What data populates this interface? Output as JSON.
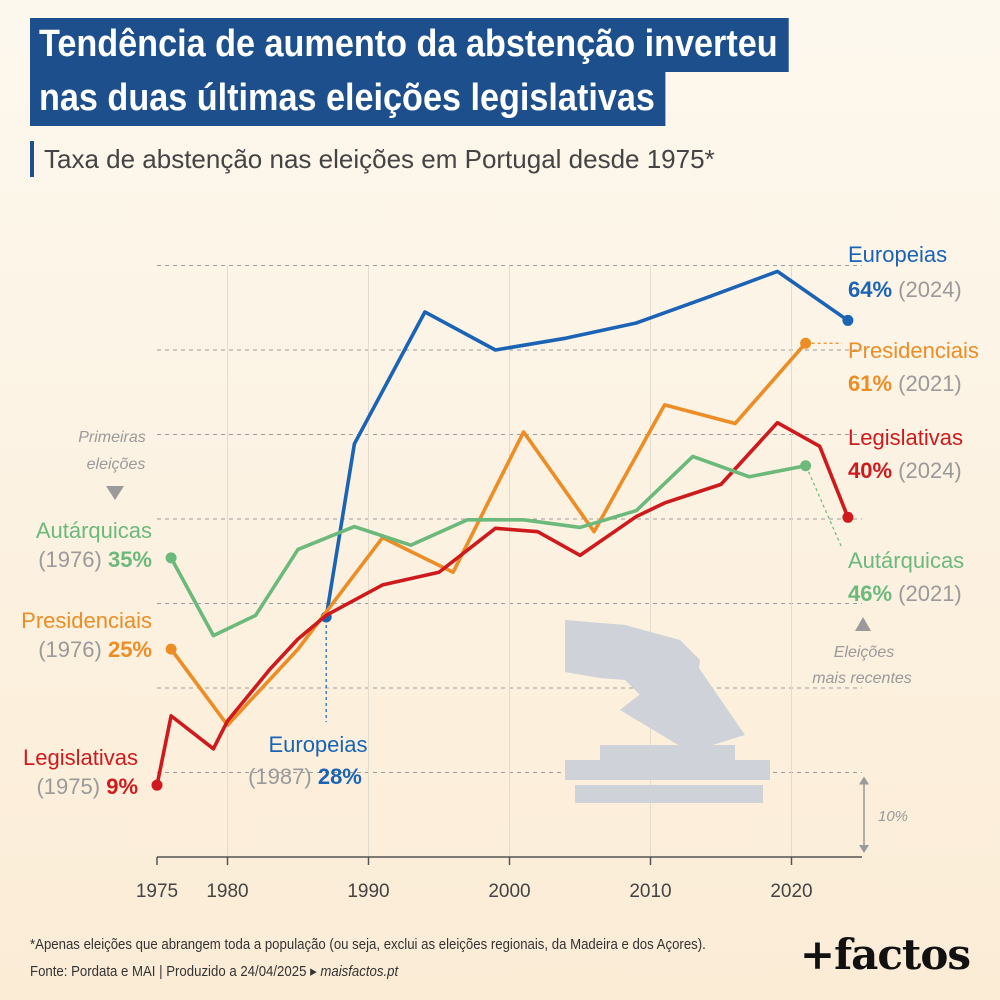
{
  "title_lines": [
    "Tendência de aumento da abstenção inverteu",
    "nas duas últimas eleições legislativas"
  ],
  "subtitle": "Taxa de abstenção nas eleições em Portugal desde 1975*",
  "footnote": "*Apenas eleições que abrangem toda a população (ou seja, exclui as eleições regionais, da Madeira e dos Açores).",
  "source": {
    "text": "Fonte: Pordata e MAI  |  Produzido a 24/04/2025 ▸ ",
    "site": "maisfactos.pt"
  },
  "brand": "+factos",
  "annotations": {
    "first_elections": [
      "Primeiras",
      "eleições"
    ],
    "recent_elections": [
      "Eleições",
      "mais recentes"
    ],
    "scale_note": "10%"
  },
  "colors": {
    "europeias": "#1a63b5",
    "presidenciais": "#ec8d25",
    "legislativas": "#cf1a1d",
    "autarquicas": "#6cb97c",
    "title_bg": "#1c4f8c",
    "grey": "#9a9a9a"
  },
  "chart_data": {
    "type": "line",
    "title": "Taxa de abstenção nas eleições em Portugal desde 1975*",
    "x_ticks": [
      1975,
      1980,
      1990,
      2000,
      2010,
      2020
    ],
    "xlim": [
      1975,
      2025
    ],
    "ylim": [
      0,
      70
    ],
    "grid": "dashed horizontal lines every 10%",
    "y_gridlines": [
      10,
      20,
      30,
      40,
      50,
      60,
      70
    ],
    "series": [
      {
        "name": "Europeias",
        "key": "europeias",
        "x": [
          1987,
          1989,
          1994,
          1999,
          2004,
          2009,
          2014,
          2019,
          2024
        ],
        "y": [
          28.4,
          48.9,
          64.5,
          60.0,
          61.4,
          63.2,
          66.2,
          69.3,
          63.5
        ],
        "first_label": {
          "name": "Europeias",
          "year": "(1987)",
          "value": "28%"
        },
        "last_label": {
          "name": "Europeias",
          "value": "64%",
          "year": "(2024)"
        }
      },
      {
        "name": "Presidenciais",
        "key": "presidenciais",
        "x": [
          1976,
          1980,
          1985,
          1991,
          1996,
          2001,
          2006,
          2011,
          2016,
          2021
        ],
        "y": [
          24.6,
          15.6,
          24.6,
          37.8,
          33.7,
          50.3,
          38.5,
          53.5,
          51.3,
          60.8
        ],
        "first_label": {
          "name": "Presidenciais",
          "year": "(1976)",
          "value": "25%"
        },
        "last_label": {
          "name": "Presidenciais",
          "value": "61%",
          "year": "(2021)"
        }
      },
      {
        "name": "Legislativas",
        "key": "legislativas",
        "x": [
          1975,
          1976,
          1979,
          1980,
          1983,
          1985,
          1987,
          1991,
          1995,
          1999,
          2002,
          2005,
          2009,
          2011,
          2015,
          2019,
          2022,
          2024
        ],
        "y": [
          8.5,
          16.7,
          12.8,
          16.1,
          22.2,
          25.8,
          28.6,
          32.2,
          33.7,
          38.9,
          38.5,
          35.7,
          40.3,
          41.9,
          44.1,
          51.4,
          48.6,
          40.2
        ],
        "first_label": {
          "name": "Legislativas",
          "year": "(1975)",
          "value": "9%"
        },
        "last_label": {
          "name": "Legislativas",
          "value": "40%",
          "year": "(2024)"
        }
      },
      {
        "name": "Autárquicas",
        "key": "autarquicas",
        "x": [
          1976,
          1979,
          1982,
          1985,
          1989,
          1993,
          1997,
          2001,
          2005,
          2009,
          2013,
          2017,
          2021
        ],
        "y": [
          35.4,
          26.2,
          28.6,
          36.4,
          39.1,
          36.9,
          39.9,
          39.9,
          39.0,
          41.0,
          47.4,
          45.0,
          46.3
        ],
        "first_label": {
          "name": "Autárquicas",
          "year": "(1976)",
          "value": "35%"
        },
        "last_label": {
          "name": "Autárquicas",
          "value": "46%",
          "year": "(2021)"
        }
      }
    ]
  }
}
